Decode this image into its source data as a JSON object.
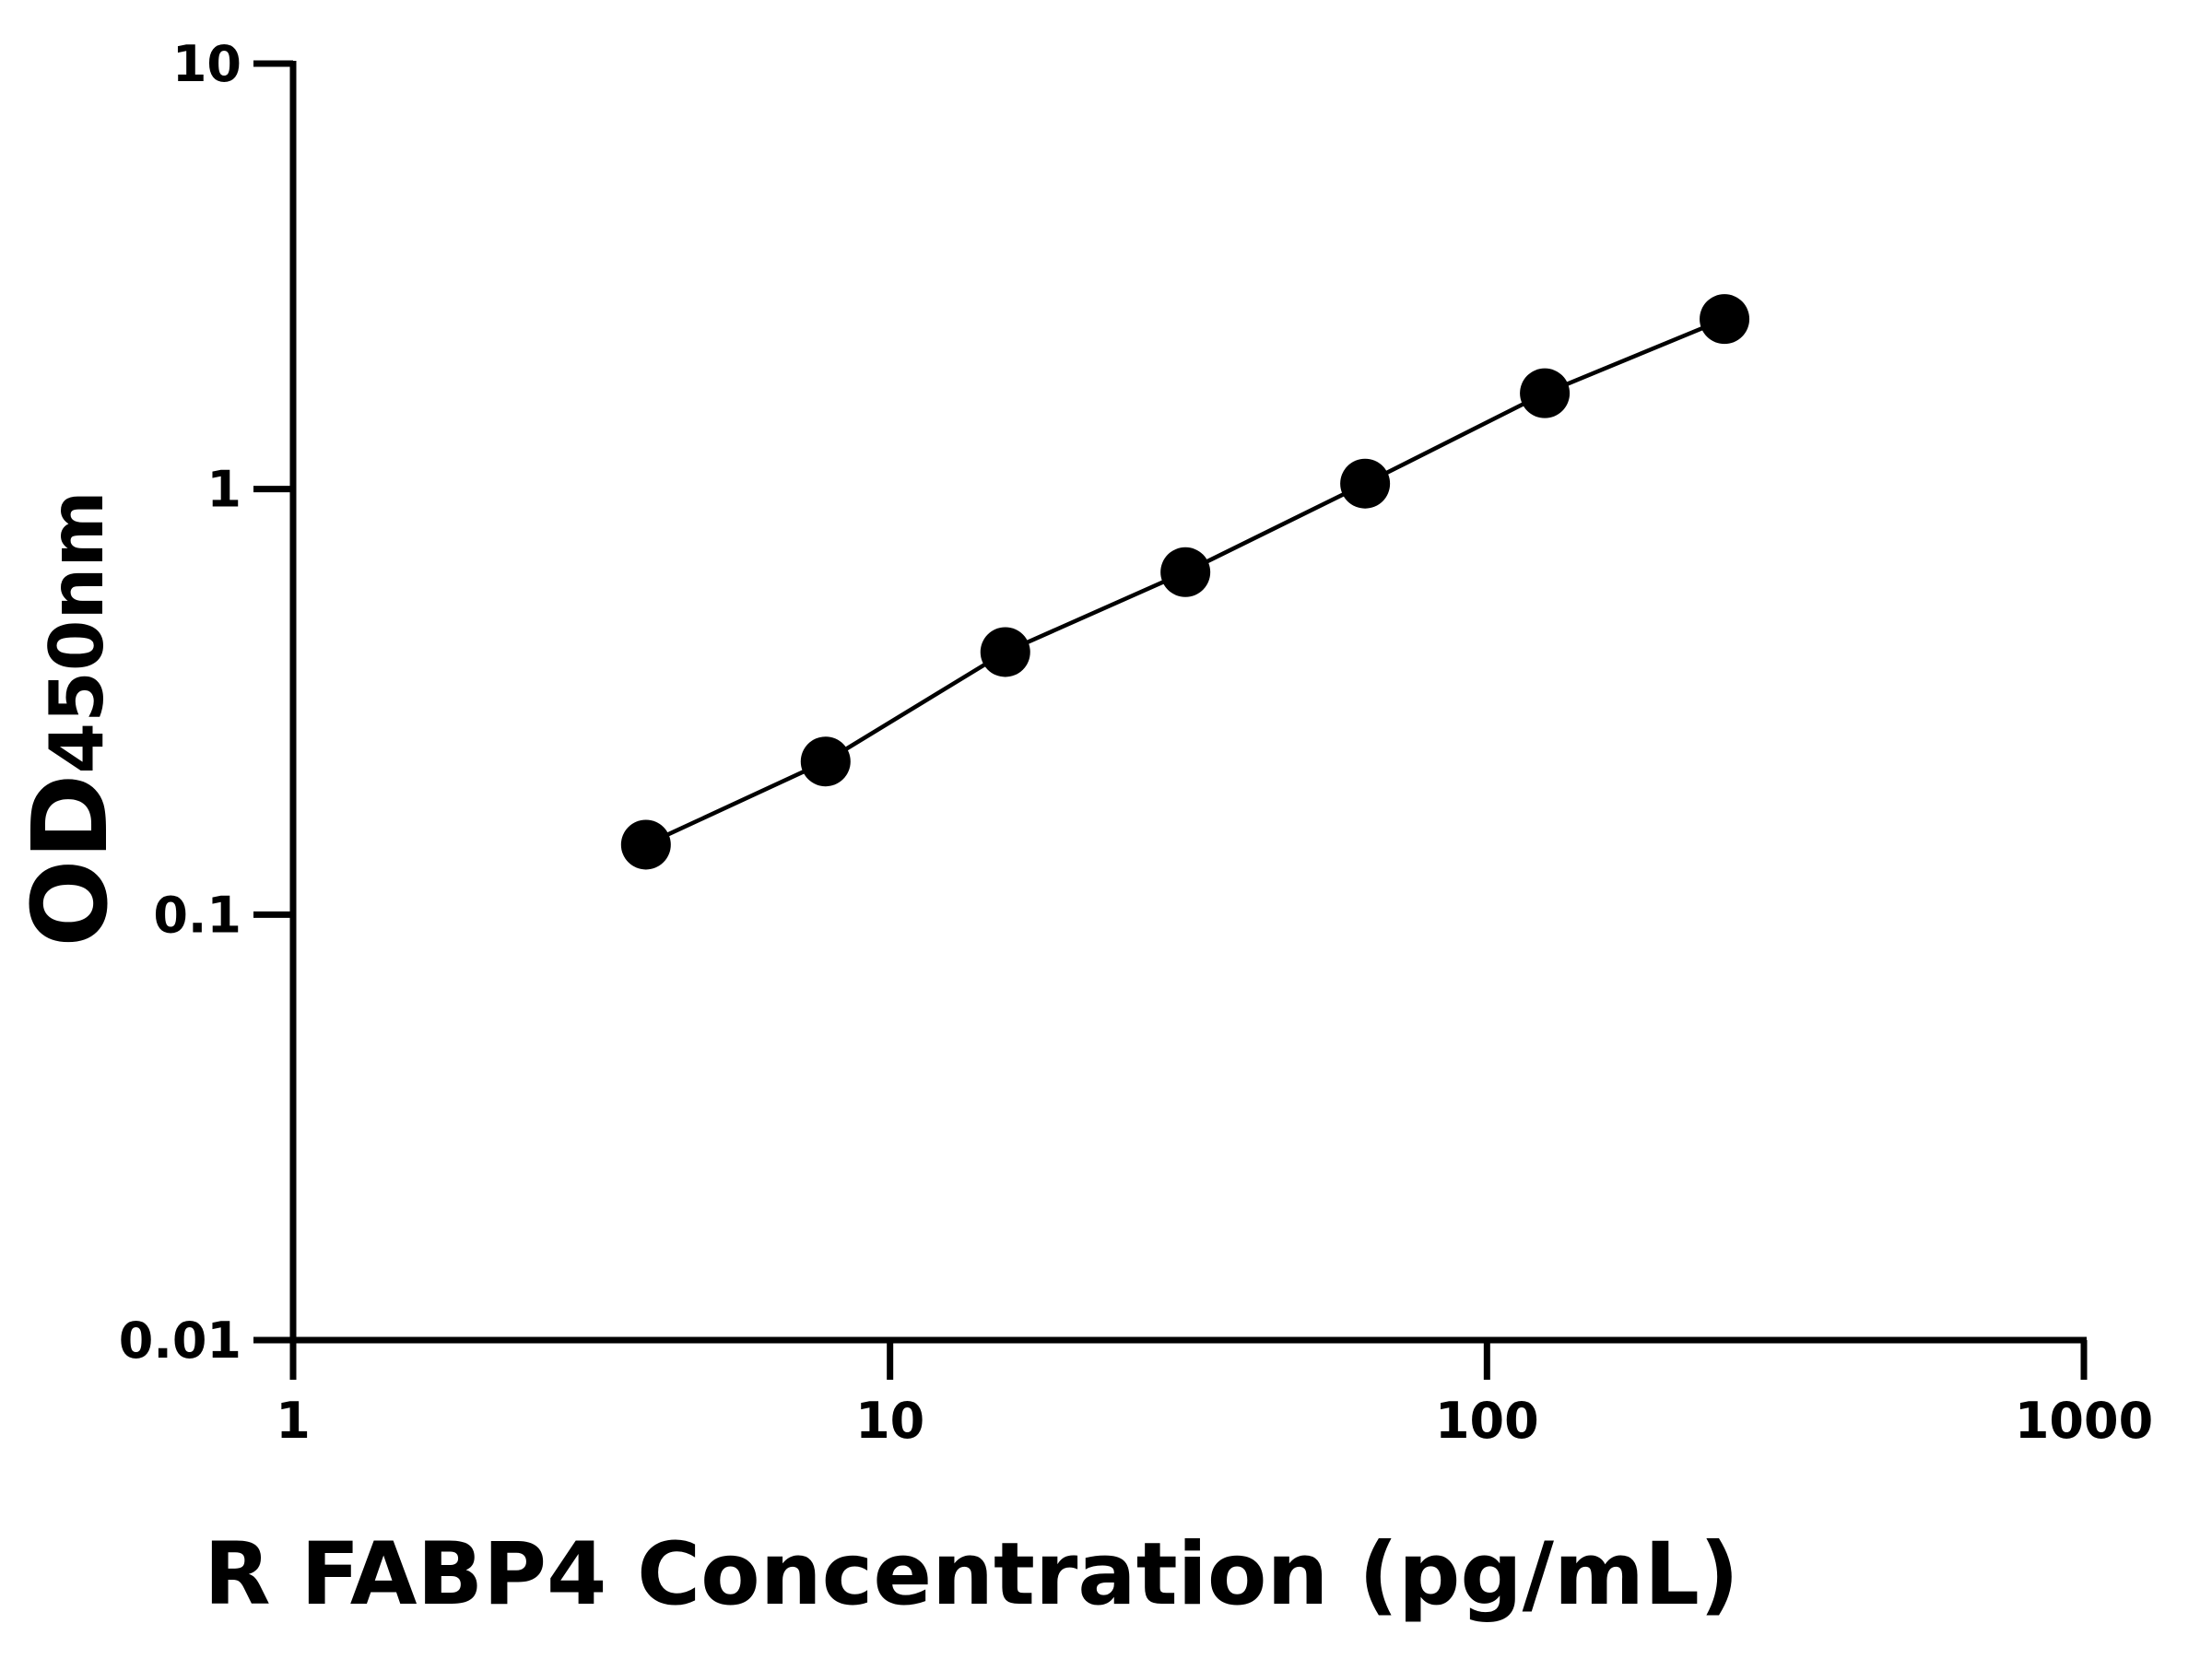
{
  "chart_data": {
    "type": "line",
    "xlabel": "R FABP4 Concentration (pg/mL)",
    "ylabel": {
      "main": "OD",
      "sub": "450nm"
    },
    "x": [
      3.9,
      7.8,
      15.6,
      31.25,
      62.5,
      125,
      250
    ],
    "series": [
      {
        "color": "#000000",
        "values": [
          0.146,
          0.229,
          0.414,
          0.638,
          1.03,
          1.68,
          2.51
        ]
      }
    ],
    "xlim": [
      1,
      1000
    ],
    "xticks": [
      1,
      10,
      100,
      1000
    ],
    "ylim": [
      0.01,
      10
    ],
    "yticks": [
      0.01,
      0.1,
      1,
      10
    ],
    "xscale": "log",
    "yscale": "log",
    "markers": true
  }
}
